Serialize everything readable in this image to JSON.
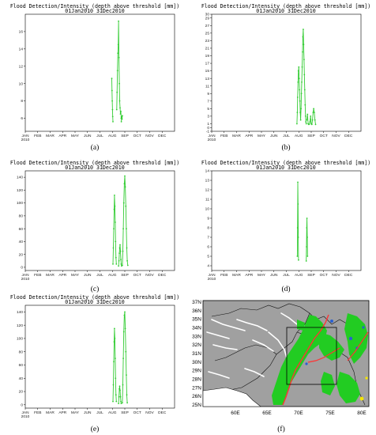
{
  "chart_data": [
    {
      "id": "a",
      "type": "line",
      "title": "Flood Detection/Intensity (depth above threshold [mm])",
      "subtitle": "01Jan2010 31Dec2010",
      "caption": "(a)",
      "x_tick_labels": [
        "JAN\n2010",
        "FEB",
        "MAR",
        "APR",
        "MAY",
        "JUN",
        "JUL",
        "AUG",
        "SEP",
        "OCT",
        "NOV",
        "DEC"
      ],
      "ylim": [
        4.5,
        18
      ],
      "yticks": [
        6,
        8,
        10,
        12,
        14,
        16
      ],
      "color": "#33cc33",
      "segments": [
        {
          "x": [
            6.95,
            6.97,
            6.99,
            7.01,
            7.03,
            7.05
          ],
          "y": [
            10.6,
            9.2,
            8.0,
            7.0,
            6.2,
            5.6
          ]
        },
        {
          "x": [
            7.35,
            7.38,
            7.41,
            7.44,
            7.47,
            7.5,
            7.53,
            7.56,
            7.59,
            7.62,
            7.65,
            7.68,
            7.71
          ],
          "y": [
            7.0,
            9.0,
            11.5,
            13.5,
            14.5,
            17.2,
            13.0,
            10.0,
            8.0,
            7.2,
            6.5,
            6.8,
            6.0
          ]
        },
        {
          "x": [
            7.72,
            7.74,
            7.76,
            7.78,
            7.8
          ],
          "y": [
            5.6,
            6.2,
            6.0,
            5.9,
            6.3
          ]
        }
      ]
    },
    {
      "id": "b",
      "type": "line",
      "title": "Flood Detection/Intensity (depth above threshold [mm])",
      "subtitle": "01Jan2010 31Dec2010",
      "caption": "(b)",
      "x_tick_labels": [
        "JAN\n2010",
        "FEB",
        "MAR",
        "APR",
        "MAY",
        "JUN",
        "JUL",
        "AUG",
        "SEP",
        "OCT",
        "NOV",
        "DEC"
      ],
      "ylim": [
        -1,
        30
      ],
      "yticks": [
        -1,
        0,
        1,
        3,
        5,
        7,
        9,
        11,
        13,
        15,
        17,
        19,
        21,
        23,
        25,
        27,
        29,
        30
      ],
      "color": "#33cc33",
      "segments": [
        {
          "x": [
            6.85,
            6.88,
            6.91,
            6.94,
            6.97,
            7.0,
            7.03,
            7.06,
            7.09,
            7.12,
            7.15,
            7.18,
            7.21,
            7.24,
            7.27,
            7.3,
            7.33,
            7.36,
            7.39,
            7.42,
            7.45,
            7.48,
            7.51,
            7.54,
            7.57,
            7.6
          ],
          "y": [
            1.0,
            4.0,
            8.0,
            12.0,
            15.0,
            16.0,
            13.0,
            10.0,
            7.0,
            4.0,
            2.0,
            5.0,
            9.0,
            12.0,
            16.0,
            20.0,
            24.0,
            26.0,
            22.0,
            18.0,
            14.0,
            10.0,
            6.0,
            3.0,
            1.5,
            1.0
          ]
        },
        {
          "x": [
            7.65,
            7.7,
            7.75,
            7.8,
            7.85,
            7.9,
            7.95,
            8.0
          ],
          "y": [
            2.0,
            3.5,
            1.0,
            0.8,
            0.9,
            1.5,
            3.0,
            1.0
          ]
        },
        {
          "x": [
            8.05,
            8.1,
            8.15,
            8.2,
            8.25,
            8.3,
            8.35
          ],
          "y": [
            0.8,
            2.0,
            4.0,
            5.0,
            4.0,
            2.0,
            0.8
          ]
        }
      ]
    },
    {
      "id": "c",
      "type": "line",
      "title": "Flood Detection/Intensity (depth above threshold [mm])",
      "subtitle": "01Jan2010 31Dec2010",
      "caption": "(c)",
      "x_tick_labels": [
        "JAN\n2010",
        "FEB",
        "MAR",
        "APR",
        "MAY",
        "JUN",
        "JUL",
        "AUG",
        "SEP",
        "OCT",
        "NOV",
        "DEC"
      ],
      "ylim": [
        -5,
        150
      ],
      "yticks": [
        0,
        20,
        40,
        60,
        80,
        100,
        120,
        140
      ],
      "color": "#33cc33",
      "segments": [
        {
          "x": [
            7.05,
            7.08,
            7.11,
            7.14,
            7.17,
            7.2,
            7.23,
            7.26,
            7.29,
            7.32
          ],
          "y": [
            5,
            30,
            60,
            90,
            112,
            95,
            70,
            40,
            15,
            5
          ]
        },
        {
          "x": [
            7.5,
            7.53,
            7.56,
            7.59,
            7.62,
            7.65,
            7.68,
            7.71,
            7.74
          ],
          "y": [
            2,
            10,
            22,
            30,
            35,
            25,
            12,
            5,
            2
          ]
        },
        {
          "x": [
            7.8,
            7.84,
            7.88,
            7.92,
            7.96,
            8.0,
            8.04,
            8.08,
            8.12,
            8.16,
            8.2,
            8.24
          ],
          "y": [
            3,
            25,
            60,
            100,
            130,
            142,
            125,
            95,
            60,
            30,
            10,
            3
          ]
        }
      ]
    },
    {
      "id": "d",
      "type": "line",
      "title": "Flood Detection/Intensity (depth above threshold [mm])",
      "subtitle": "01Jan2010 31Dec2010",
      "caption": "(d)",
      "x_tick_labels": [
        "JAN\n2010",
        "FEB",
        "MAR",
        "APR",
        "MAY",
        "JUN",
        "JUL",
        "AUG",
        "SEP",
        "OCT",
        "NOV",
        "DEC"
      ],
      "ylim": [
        3.5,
        14
      ],
      "yticks": [
        4,
        5,
        6,
        7,
        8,
        9,
        10,
        11,
        12,
        13,
        14
      ],
      "color": "#33cc33",
      "segments": [
        {
          "x": [
            6.88,
            6.9,
            6.92,
            6.94,
            6.96,
            6.98
          ],
          "y": [
            5.0,
            8.0,
            12.8,
            10.5,
            7.0,
            4.6
          ]
        },
        {
          "x": [
            7.6,
            7.62,
            7.64,
            7.66,
            7.68,
            7.7
          ],
          "y": [
            4.5,
            6.0,
            8.0,
            9.0,
            7.0,
            5.0
          ]
        }
      ]
    },
    {
      "id": "e",
      "type": "line",
      "title": "Flood Detection/Intensity (depth above threshold [mm])",
      "subtitle": "01Jan2010 31Dec2010",
      "caption": "(e)",
      "x_tick_labels": [
        "JAN\n2010",
        "FEB",
        "MAR",
        "APR",
        "MAY",
        "JUN",
        "JUL",
        "AUG",
        "SEP",
        "OCT",
        "NOV",
        "DEC"
      ],
      "ylim": [
        -5,
        150
      ],
      "yticks": [
        0,
        20,
        40,
        60,
        80,
        100,
        120,
        140
      ],
      "color": "#33cc33",
      "segments": [
        {
          "x": [
            7.05,
            7.08,
            7.11,
            7.14,
            7.17,
            7.2,
            7.23,
            7.26,
            7.29,
            7.32
          ],
          "y": [
            5,
            30,
            65,
            95,
            115,
            100,
            70,
            40,
            15,
            5
          ]
        },
        {
          "x": [
            7.5,
            7.53,
            7.56,
            7.59,
            7.62,
            7.65,
            7.68,
            7.71
          ],
          "y": [
            2,
            12,
            24,
            28,
            22,
            12,
            5,
            2
          ]
        },
        {
          "x": [
            7.8,
            7.84,
            7.88,
            7.92,
            7.96,
            8.0,
            8.04,
            8.08,
            8.12,
            8.16,
            8.2
          ],
          "y": [
            3,
            30,
            70,
            110,
            135,
            140,
            115,
            80,
            45,
            15,
            3
          ]
        }
      ]
    }
  ],
  "map": {
    "caption": "(f)",
    "lat_labels": [
      "37N",
      "36N",
      "35N",
      "34N",
      "33N",
      "32N",
      "31N",
      "30N",
      "29N",
      "28N",
      "27N",
      "26N",
      "25N"
    ],
    "lon_labels": [
      "60E",
      "65E",
      "70E",
      "75E",
      "80E"
    ],
    "colors": {
      "land": "#a0a0a0",
      "rivers": "#ffffff",
      "flood": "#22cc22",
      "river_track": "#ff3333",
      "water": "#2a5fd0",
      "highlight": "#f5e600"
    }
  }
}
